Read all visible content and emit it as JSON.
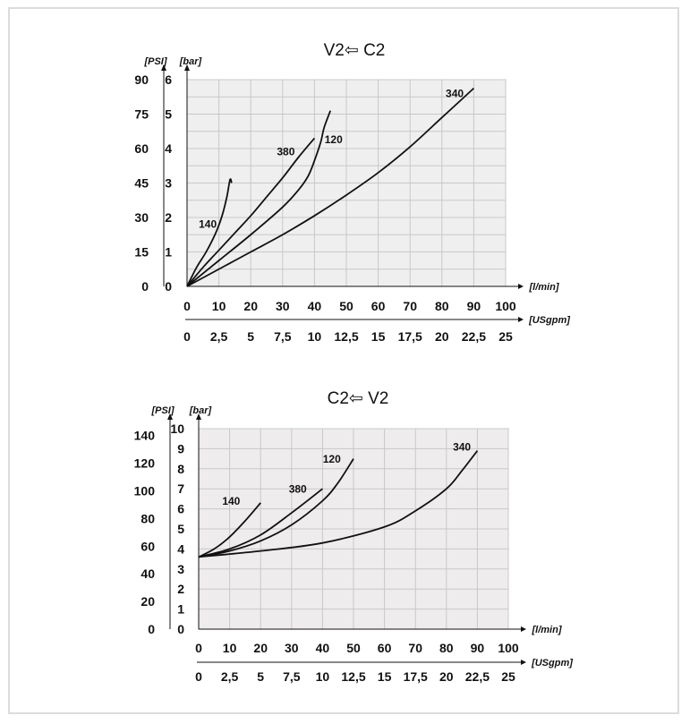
{
  "chart_data": [
    {
      "type": "line",
      "title": "V2⇦ C2",
      "x_unit_label": "[l/min]",
      "x_ticks": [
        "0",
        "10",
        "20",
        "30",
        "40",
        "50",
        "60",
        "70",
        "80",
        "90",
        "100"
      ],
      "x2_unit_label": "[USgpm]",
      "x2_ticks": [
        "0",
        "2,5",
        "5",
        "7,5",
        "10",
        "12,5",
        "15",
        "17,5",
        "20",
        "22,5",
        "25"
      ],
      "y_unit_label": "[bar]",
      "y_ticks": [
        "0",
        "1",
        "2",
        "3",
        "4",
        "5",
        "6"
      ],
      "y2_unit_label": "[PSI]",
      "y2_ticks": [
        "0",
        "15",
        "30",
        "45",
        "60",
        "75",
        "90"
      ],
      "xlim": [
        0,
        100
      ],
      "ylim": [
        0,
        6
      ],
      "grid": true,
      "series": [
        {
          "name": "140",
          "x": [
            0,
            3,
            6,
            9,
            11,
            12.5,
            13.5,
            14
          ],
          "y": [
            0,
            0.55,
            1.0,
            1.55,
            2.05,
            2.6,
            3.1,
            3.0
          ]
        },
        {
          "name": "380",
          "x": [
            0,
            5,
            10,
            15,
            20,
            25,
            30,
            35,
            40
          ],
          "y": [
            0,
            0.55,
            1.05,
            1.55,
            2.05,
            2.6,
            3.15,
            3.75,
            4.3
          ]
        },
        {
          "name": "120",
          "x": [
            0,
            10,
            20,
            30,
            35,
            38,
            40,
            42,
            43,
            45
          ],
          "y": [
            0,
            0.75,
            1.5,
            2.3,
            2.8,
            3.2,
            3.65,
            4.2,
            4.6,
            5.1
          ]
        },
        {
          "name": "340",
          "x": [
            0,
            10,
            20,
            30,
            40,
            50,
            60,
            70,
            80,
            90
          ],
          "y": [
            0,
            0.5,
            1.0,
            1.5,
            2.05,
            2.65,
            3.3,
            4.05,
            4.9,
            5.75
          ]
        }
      ],
      "series_label_pos": [
        {
          "name": "140",
          "x": 6.5,
          "y": 1.7
        },
        {
          "name": "380",
          "x": 31,
          "y": 3.8
        },
        {
          "name": "120",
          "x": 46,
          "y": 4.15
        },
        {
          "name": "340",
          "x": 84,
          "y": 5.5
        }
      ]
    },
    {
      "type": "line",
      "title": "C2⇦ V2",
      "x_unit_label": "[l/min]",
      "x_ticks": [
        "0",
        "10",
        "20",
        "30",
        "40",
        "50",
        "60",
        "70",
        "80",
        "90",
        "100"
      ],
      "x2_unit_label": "[USgpm]",
      "x2_ticks": [
        "0",
        "2,5",
        "5",
        "7,5",
        "10",
        "12,5",
        "15",
        "17,5",
        "20",
        "22,5",
        "25"
      ],
      "y_unit_label": "[bar]",
      "y_ticks": [
        "0",
        "1",
        "2",
        "3",
        "4",
        "5",
        "6",
        "7",
        "8",
        "9",
        "10"
      ],
      "y2_unit_label": "[PSI]",
      "y2_ticks": [
        "0",
        "20",
        "40",
        "60",
        "80",
        "100",
        "120",
        "140"
      ],
      "xlim": [
        0,
        100
      ],
      "ylim": [
        0,
        10
      ],
      "grid": true,
      "series": [
        {
          "name": "140",
          "x": [
            0,
            5,
            10,
            15,
            20
          ],
          "y": [
            3.6,
            4.0,
            4.6,
            5.4,
            6.3
          ]
        },
        {
          "name": "380",
          "x": [
            0,
            10,
            20,
            30,
            40
          ],
          "y": [
            3.6,
            4.0,
            4.7,
            5.8,
            7.0
          ]
        },
        {
          "name": "120",
          "x": [
            0,
            10,
            20,
            30,
            40,
            45,
            50
          ],
          "y": [
            3.6,
            3.9,
            4.4,
            5.2,
            6.4,
            7.3,
            8.5
          ]
        },
        {
          "name": "340",
          "x": [
            0,
            20,
            40,
            60,
            70,
            80,
            85,
            90
          ],
          "y": [
            3.6,
            3.9,
            4.3,
            5.1,
            5.9,
            7.0,
            7.9,
            8.9
          ]
        }
      ],
      "series_label_pos": [
        {
          "name": "140",
          "x": 10.5,
          "y": 6.2
        },
        {
          "name": "380",
          "x": 32,
          "y": 6.8
        },
        {
          "name": "120",
          "x": 43,
          "y": 8.3
        },
        {
          "name": "340",
          "x": 85,
          "y": 8.9
        }
      ]
    }
  ]
}
